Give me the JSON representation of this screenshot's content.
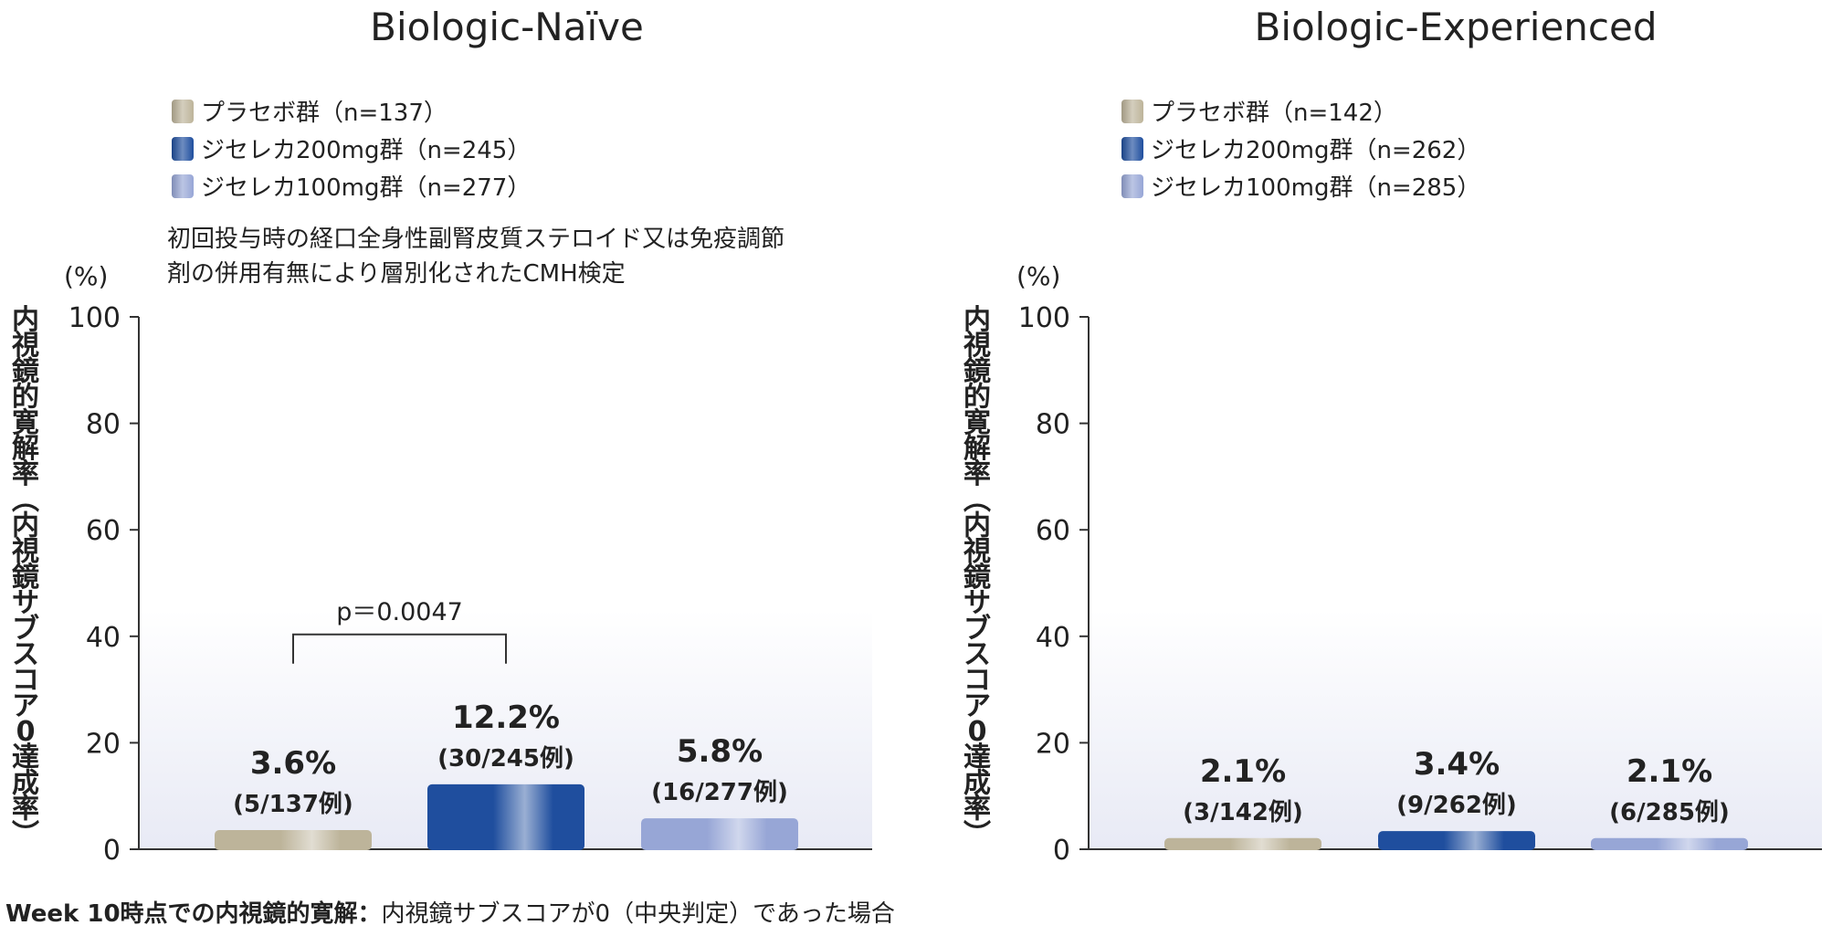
{
  "colors": {
    "placebo": "#bdb49a",
    "dose200": "#1f4e9e",
    "dose100": "#97a6d6"
  },
  "chart_data": [
    {
      "type": "bar",
      "title": "Biologic-Naïve",
      "y_unit": "(%)",
      "ylabel": "内視鏡的寛解率（内視鏡サブスコア0達成率）",
      "ylim": [
        0,
        100
      ],
      "yticks": [
        0,
        20,
        40,
        60,
        80,
        100
      ],
      "grid": false,
      "legend_position": "top-left",
      "legend": [
        {
          "label": "プラセボ群（n=137）",
          "color_key": "placebo"
        },
        {
          "label": "ジセレカ200mg群（n=245）",
          "color_key": "dose200"
        },
        {
          "label": "ジセレカ100mg群（n=277）",
          "color_key": "dose100"
        }
      ],
      "note_lines": [
        "初回投与時の経口全身性副腎皮質ステロイド又は免疫調節",
        "剤の併用有無により層別化されたCMH検定"
      ],
      "bars": [
        {
          "value": 3.6,
          "pct_label": "3.6%",
          "count_label": "(5/137例)",
          "color_key": "placebo"
        },
        {
          "value": 12.2,
          "pct_label": "12.2%",
          "count_label": "(30/245例)",
          "color_key": "dose200"
        },
        {
          "value": 5.8,
          "pct_label": "5.8%",
          "count_label": "(16/277例)",
          "color_key": "dose100"
        }
      ],
      "comparison": {
        "from": 0,
        "to": 1,
        "label": "p＝0.0047",
        "level": 40
      }
    },
    {
      "type": "bar",
      "title": "Biologic-Experienced",
      "y_unit": "(%)",
      "ylabel": "内視鏡的寛解率（内視鏡サブスコア0達成率）",
      "ylim": [
        0,
        100
      ],
      "yticks": [
        0,
        20,
        40,
        60,
        80,
        100
      ],
      "grid": false,
      "legend_position": "top-left",
      "legend": [
        {
          "label": "プラセボ群（n=142）",
          "color_key": "placebo"
        },
        {
          "label": "ジセレカ200mg群（n=262）",
          "color_key": "dose200"
        },
        {
          "label": "ジセレカ100mg群（n=285）",
          "color_key": "dose100"
        }
      ],
      "note_lines": [],
      "bars": [
        {
          "value": 2.1,
          "pct_label": "2.1%",
          "count_label": "(3/142例)",
          "color_key": "placebo"
        },
        {
          "value": 3.4,
          "pct_label": "3.4%",
          "count_label": "(9/262例)",
          "color_key": "dose200"
        },
        {
          "value": 2.1,
          "pct_label": "2.1%",
          "count_label": "(6/285例)",
          "color_key": "dose100"
        }
      ],
      "comparison": null
    }
  ],
  "footnote": {
    "bold": "Week 10時点での内視鏡的寛解：",
    "normal": "内視鏡サブスコアが0（中央判定）であった場合"
  }
}
